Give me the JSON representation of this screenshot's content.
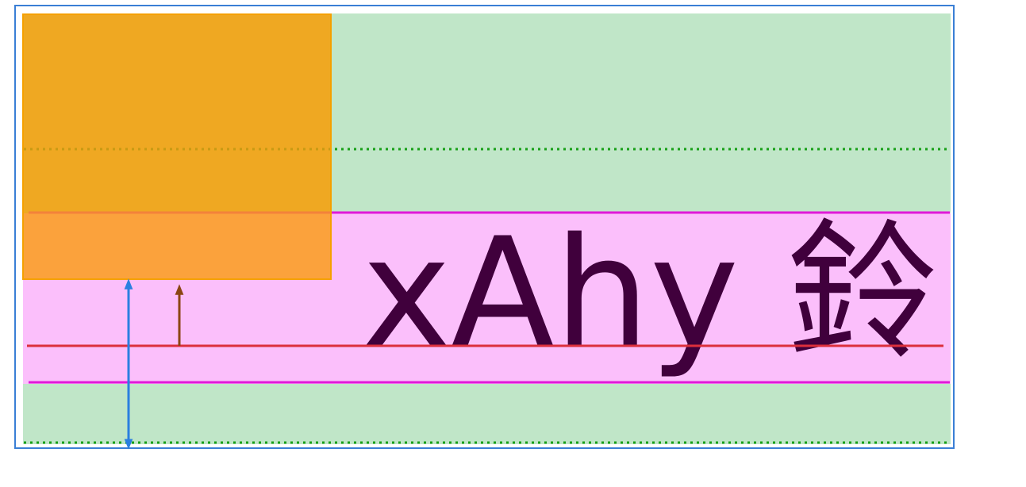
{
  "sample_text": "xAhy 鈴",
  "colors": {
    "frame_border": "#3a7fd5",
    "line_box_fill": "#c0e6c8",
    "content_area_fill": "#fbbffb",
    "float_box_fill": "#efa822",
    "float_box_border": "#f5a000",
    "float_overlap_fill": "#fba23c",
    "text_fill": "#40003c",
    "baseline_line": "#dc2f3c",
    "content_edge_line": "#e01ad8",
    "line_box_edge_dotted": "#18a018",
    "line_height_arrow": "#2a7fe0",
    "ascent_arrow": "#8b4513"
  }
}
